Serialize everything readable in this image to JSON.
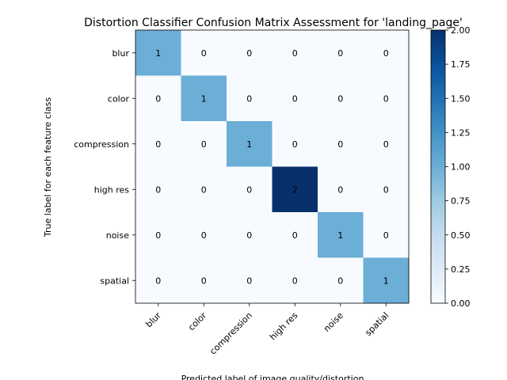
{
  "chart_data": {
    "type": "heatmap",
    "title": "Distortion Classifier Confusion Matrix Assessment for 'landing_page'",
    "xlabel": "Predicted label of image quality/distortion",
    "ylabel": "True label for each feature class",
    "x_categories": [
      "blur",
      "color",
      "compression",
      "high res",
      "noise",
      "spatial"
    ],
    "y_categories": [
      "blur",
      "color",
      "compression",
      "high res",
      "noise",
      "spatial"
    ],
    "values": [
      [
        1,
        0,
        0,
        0,
        0,
        0
      ],
      [
        0,
        1,
        0,
        0,
        0,
        0
      ],
      [
        0,
        0,
        1,
        0,
        0,
        0
      ],
      [
        0,
        0,
        0,
        2,
        0,
        0
      ],
      [
        0,
        0,
        0,
        0,
        1,
        0
      ],
      [
        0,
        0,
        0,
        0,
        0,
        1
      ]
    ],
    "colorscale": "Blues",
    "vmin": 0,
    "vmax": 2,
    "colorbar_ticks": [
      "0.00",
      "0.25",
      "0.50",
      "0.75",
      "1.00",
      "1.25",
      "1.50",
      "1.75",
      "2.00"
    ]
  }
}
